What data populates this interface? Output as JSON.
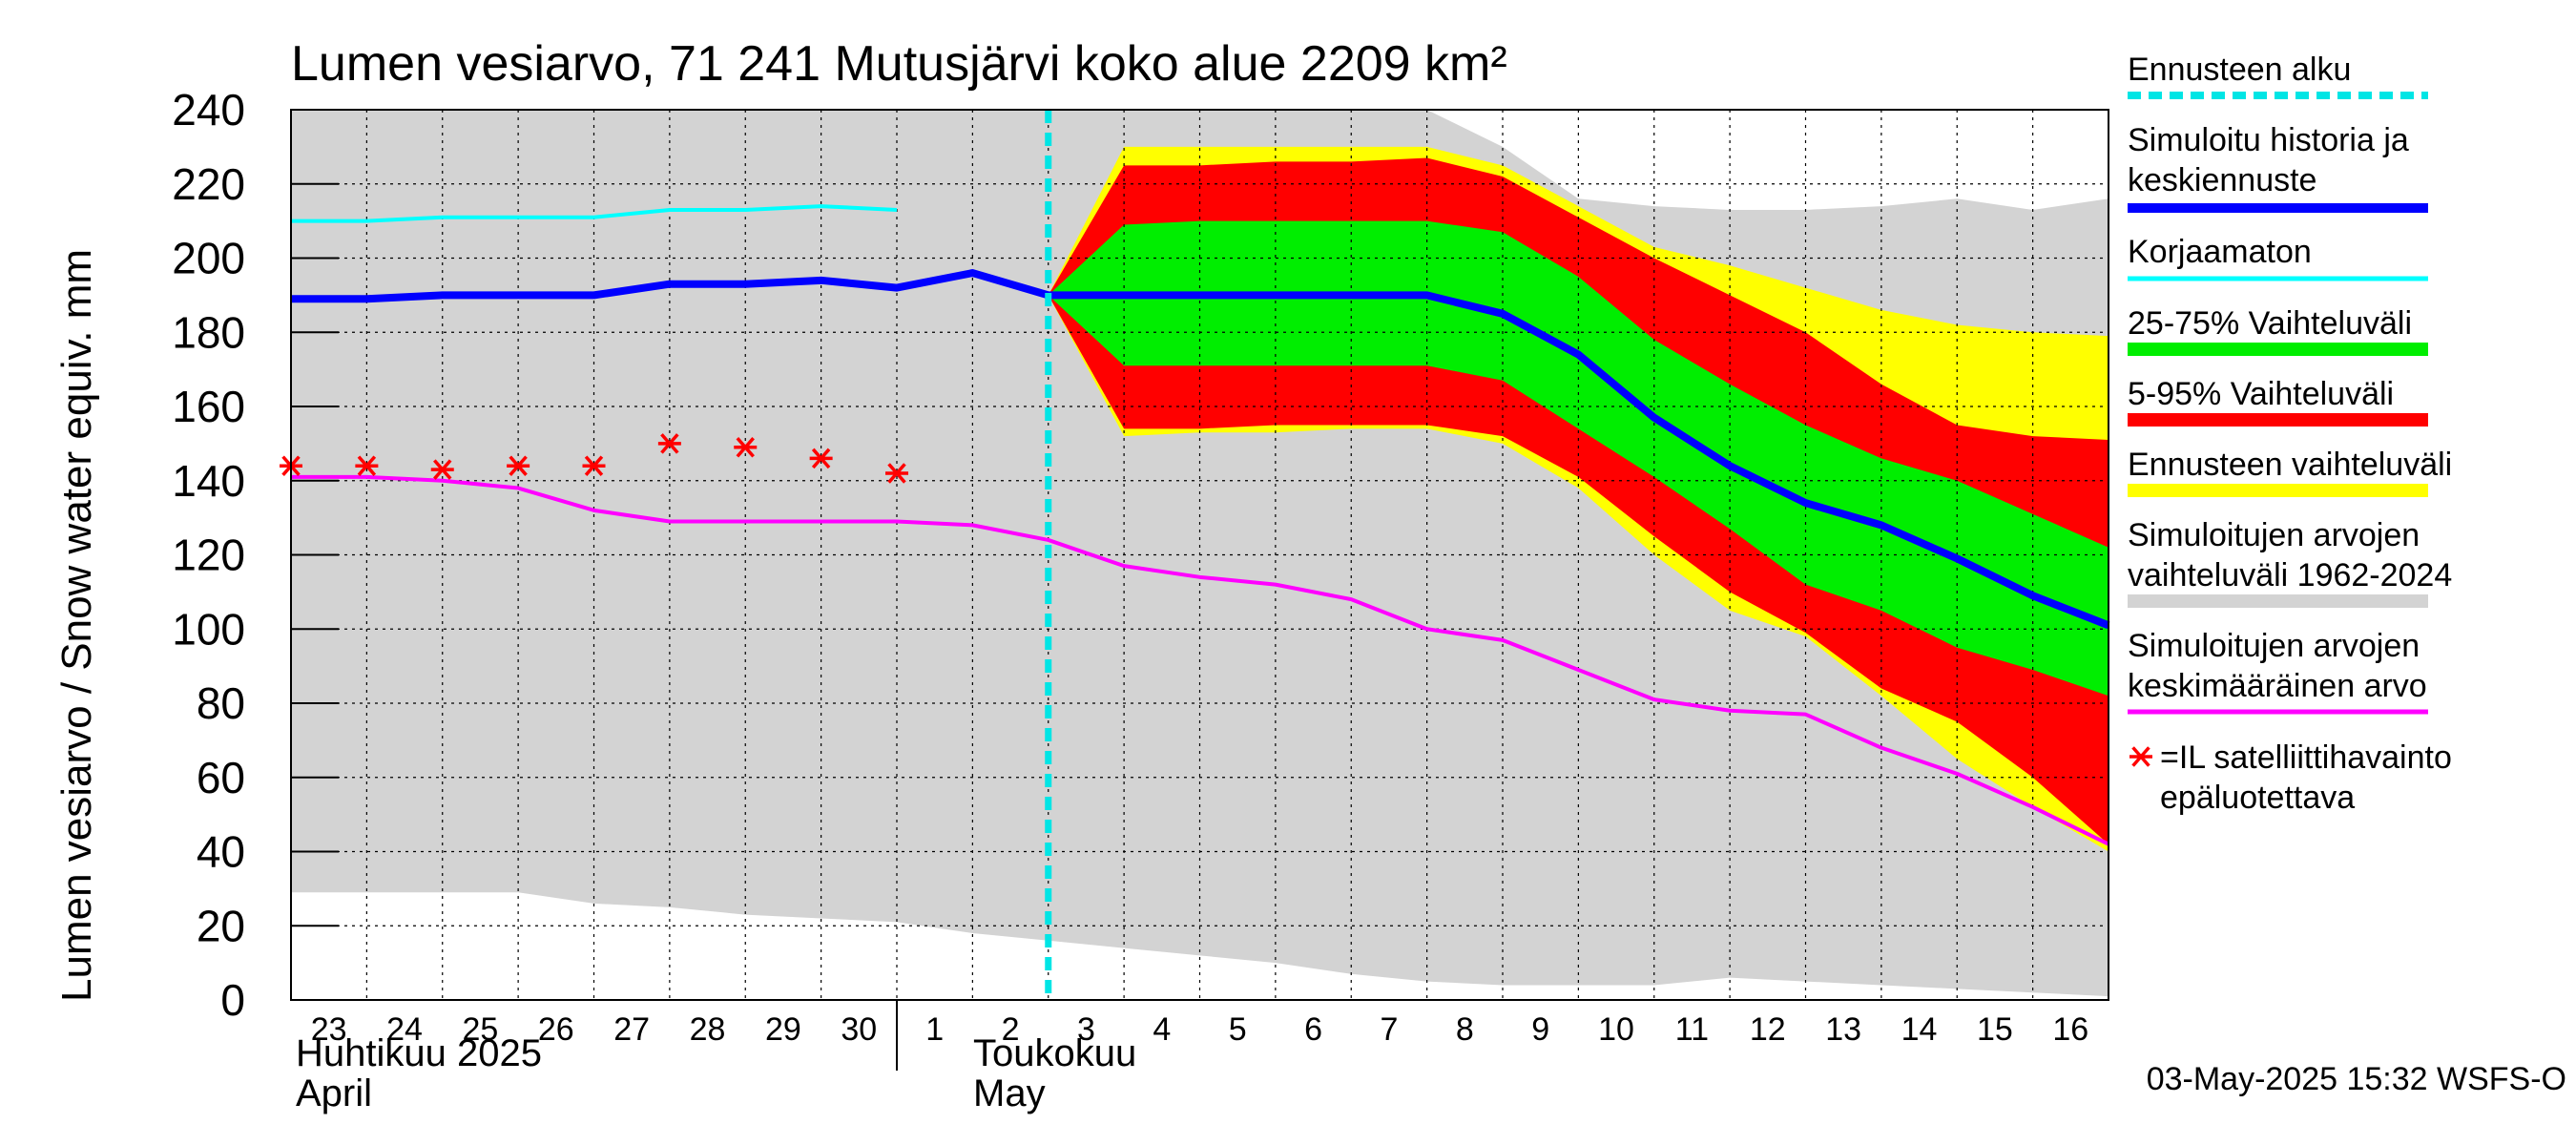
{
  "chart_data": {
    "type": "area",
    "title": "Lumen vesiarvo, 71 241 Mutusjärvi koko alue 2209 km²",
    "ylabel": "Lumen vesiarvo / Snow water equiv.    mm",
    "ylim": [
      0,
      240
    ],
    "yticks": [
      0,
      20,
      40,
      60,
      80,
      100,
      120,
      140,
      160,
      180,
      200,
      220,
      240
    ],
    "grid": true,
    "legend_position": "right",
    "x_day_labels": [
      "23",
      "24",
      "25",
      "26",
      "27",
      "28",
      "29",
      "30",
      "1",
      "2",
      "3",
      "4",
      "5",
      "6",
      "7",
      "8",
      "9",
      "10",
      "11",
      "12",
      "13",
      "14",
      "15",
      "16"
    ],
    "x_start_label": "23",
    "month_labels": [
      {
        "at": "23",
        "fi": "Huhtikuu  2025",
        "en": "April"
      },
      {
        "at": "1",
        "fi": "Toukokuu",
        "en": "May"
      }
    ],
    "forecast_start_day": "3",
    "series": [
      {
        "name": "Simuloitujen arvojen vaihteluväli 1962-2024",
        "kind": "band",
        "color": "#d3d3d3",
        "upper": [
          [
            0,
            240
          ],
          [
            1,
            240
          ],
          [
            2,
            240
          ],
          [
            3,
            240
          ],
          [
            4,
            240
          ],
          [
            5,
            240
          ],
          [
            6,
            240
          ],
          [
            7,
            240
          ],
          [
            8,
            240
          ],
          [
            9,
            240
          ],
          [
            10,
            240
          ],
          [
            11,
            240
          ],
          [
            12,
            240
          ],
          [
            13,
            240
          ],
          [
            14,
            240
          ],
          [
            15,
            240
          ],
          [
            16,
            230
          ],
          [
            17,
            216
          ],
          [
            18,
            214
          ],
          [
            19,
            213
          ],
          [
            20,
            213
          ],
          [
            21,
            214
          ],
          [
            22,
            216
          ],
          [
            23,
            213
          ],
          [
            24,
            216
          ]
        ],
        "lower": [
          [
            0,
            29
          ],
          [
            1,
            29
          ],
          [
            2,
            29
          ],
          [
            3,
            29
          ],
          [
            4,
            26
          ],
          [
            5,
            25
          ],
          [
            6,
            23
          ],
          [
            7,
            22
          ],
          [
            8,
            21
          ],
          [
            9,
            18
          ],
          [
            10,
            16
          ],
          [
            11,
            14
          ],
          [
            12,
            12
          ],
          [
            13,
            10
          ],
          [
            14,
            7
          ],
          [
            15,
            5
          ],
          [
            16,
            4
          ],
          [
            17,
            4
          ],
          [
            18,
            4
          ],
          [
            19,
            6
          ],
          [
            20,
            5
          ],
          [
            21,
            4
          ],
          [
            22,
            3
          ],
          [
            23,
            2
          ],
          [
            24,
            1
          ]
        ]
      },
      {
        "name": "Ennusteen vaihteluväli",
        "kind": "band",
        "color": "#ffff00",
        "upper": [
          [
            10,
            190
          ],
          [
            11,
            230
          ],
          [
            12,
            230
          ],
          [
            13,
            230
          ],
          [
            14,
            230
          ],
          [
            15,
            230
          ],
          [
            16,
            225
          ],
          [
            17,
            214
          ],
          [
            18,
            203
          ],
          [
            19,
            198
          ],
          [
            20,
            192
          ],
          [
            21,
            186
          ],
          [
            22,
            182
          ],
          [
            23,
            180
          ],
          [
            24,
            179
          ]
        ],
        "lower": [
          [
            10,
            190
          ],
          [
            11,
            152
          ],
          [
            12,
            153
          ],
          [
            13,
            153
          ],
          [
            14,
            154
          ],
          [
            15,
            154
          ],
          [
            16,
            150
          ],
          [
            17,
            138
          ],
          [
            18,
            120
          ],
          [
            19,
            105
          ],
          [
            20,
            98
          ],
          [
            21,
            82
          ],
          [
            22,
            65
          ],
          [
            23,
            52
          ],
          [
            24,
            40
          ]
        ]
      },
      {
        "name": "5-95% Vaihteluväli",
        "kind": "band",
        "color": "#ff0000",
        "upper": [
          [
            10,
            190
          ],
          [
            11,
            225
          ],
          [
            12,
            225
          ],
          [
            13,
            226
          ],
          [
            14,
            226
          ],
          [
            15,
            227
          ],
          [
            16,
            222
          ],
          [
            17,
            211
          ],
          [
            18,
            200
          ],
          [
            19,
            190
          ],
          [
            20,
            180
          ],
          [
            21,
            166
          ],
          [
            22,
            155
          ],
          [
            23,
            152
          ],
          [
            24,
            151
          ]
        ],
        "lower": [
          [
            10,
            190
          ],
          [
            11,
            154
          ],
          [
            12,
            154
          ],
          [
            13,
            155
          ],
          [
            14,
            155
          ],
          [
            15,
            155
          ],
          [
            16,
            152
          ],
          [
            17,
            141
          ],
          [
            18,
            125
          ],
          [
            19,
            110
          ],
          [
            20,
            99
          ],
          [
            21,
            84
          ],
          [
            22,
            75
          ],
          [
            23,
            60
          ],
          [
            24,
            42
          ]
        ]
      },
      {
        "name": "25-75% Vaihteluväli",
        "kind": "band",
        "color": "#00ee00",
        "upper": [
          [
            10,
            190
          ],
          [
            11,
            209
          ],
          [
            12,
            210
          ],
          [
            13,
            210
          ],
          [
            14,
            210
          ],
          [
            15,
            210
          ],
          [
            16,
            207
          ],
          [
            17,
            195
          ],
          [
            18,
            178
          ],
          [
            19,
            166
          ],
          [
            20,
            155
          ],
          [
            21,
            146
          ],
          [
            22,
            140
          ],
          [
            23,
            131
          ],
          [
            24,
            122
          ]
        ],
        "lower": [
          [
            10,
            190
          ],
          [
            11,
            171
          ],
          [
            12,
            171
          ],
          [
            13,
            171
          ],
          [
            14,
            171
          ],
          [
            15,
            171
          ],
          [
            16,
            167
          ],
          [
            17,
            154
          ],
          [
            18,
            141
          ],
          [
            19,
            127
          ],
          [
            20,
            112
          ],
          [
            21,
            105
          ],
          [
            22,
            95
          ],
          [
            23,
            89
          ],
          [
            24,
            82
          ]
        ]
      },
      {
        "name": "Simuloitujen arvojen keskimääräinen arvo",
        "kind": "line",
        "color": "#ff00ff",
        "width": 4,
        "points": [
          [
            0,
            141
          ],
          [
            1,
            141
          ],
          [
            2,
            140
          ],
          [
            3,
            138
          ],
          [
            4,
            132
          ],
          [
            5,
            129
          ],
          [
            6,
            129
          ],
          [
            7,
            129
          ],
          [
            8,
            129
          ],
          [
            9,
            128
          ],
          [
            10,
            124
          ],
          [
            11,
            117
          ],
          [
            12,
            114
          ],
          [
            13,
            112
          ],
          [
            14,
            108
          ],
          [
            15,
            100
          ],
          [
            16,
            97
          ],
          [
            17,
            89
          ],
          [
            18,
            81
          ],
          [
            19,
            78
          ],
          [
            20,
            77
          ],
          [
            21,
            68
          ],
          [
            22,
            61
          ],
          [
            23,
            52
          ],
          [
            24,
            42
          ]
        ]
      },
      {
        "name": "Korjaamaton",
        "kind": "line",
        "color": "#00ffff",
        "width": 4,
        "points": [
          [
            0,
            210
          ],
          [
            1,
            210
          ],
          [
            2,
            211
          ],
          [
            3,
            211
          ],
          [
            4,
            211
          ],
          [
            5,
            213
          ],
          [
            6,
            213
          ],
          [
            7,
            214
          ],
          [
            8,
            213
          ]
        ]
      },
      {
        "name": "Simuloitu historia ja keskiennuste",
        "kind": "line",
        "color": "#0000ff",
        "width": 8,
        "points": [
          [
            0,
            189
          ],
          [
            1,
            189
          ],
          [
            2,
            190
          ],
          [
            3,
            190
          ],
          [
            4,
            190
          ],
          [
            5,
            193
          ],
          [
            6,
            193
          ],
          [
            7,
            194
          ],
          [
            8,
            192
          ],
          [
            9,
            196
          ],
          [
            10,
            190
          ],
          [
            11,
            190
          ],
          [
            12,
            190
          ],
          [
            13,
            190
          ],
          [
            14,
            190
          ],
          [
            15,
            190
          ],
          [
            16,
            185
          ],
          [
            17,
            174
          ],
          [
            18,
            157
          ],
          [
            19,
            144
          ],
          [
            20,
            134
          ],
          [
            21,
            128
          ],
          [
            22,
            119
          ],
          [
            23,
            109
          ],
          [
            24,
            101
          ]
        ]
      },
      {
        "name": "=IL satelliittihavainto epäluotettava",
        "kind": "markers",
        "color": "#ff0000",
        "points": [
          [
            0,
            144
          ],
          [
            1,
            144
          ],
          [
            2,
            143
          ],
          [
            3,
            144
          ],
          [
            4,
            144
          ],
          [
            5,
            150
          ],
          [
            6,
            149
          ],
          [
            7,
            146
          ],
          [
            8,
            142
          ]
        ]
      }
    ]
  },
  "legend": [
    {
      "label": "Ennusteen alku",
      "type": "dashed",
      "color": "#00e5e5"
    },
    {
      "label": "Simuloitu historia ja keskiennuste",
      "type": "line",
      "color": "#0000ff"
    },
    {
      "label": "Korjaamaton",
      "type": "line",
      "color": "#00ffff"
    },
    {
      "label": "25-75% Vaihteluväli",
      "type": "line",
      "color": "#00ee00"
    },
    {
      "label": "5-95% Vaihteluväli",
      "type": "line",
      "color": "#ff0000"
    },
    {
      "label": "Ennusteen vaihteluväli",
      "type": "line",
      "color": "#ffff00"
    },
    {
      "label": "Simuloitujen arvojen vaihteluväli 1962-2024",
      "type": "line",
      "color": "#d3d3d3"
    },
    {
      "label": "Simuloitujen arvojen keskimääräinen arvo",
      "type": "line",
      "color": "#ff00ff"
    },
    {
      "label": "=IL satelliittihavainto epäluotettava",
      "type": "marker",
      "color": "#ff0000"
    }
  ],
  "footer": "03-May-2025 15:32 WSFS-O"
}
